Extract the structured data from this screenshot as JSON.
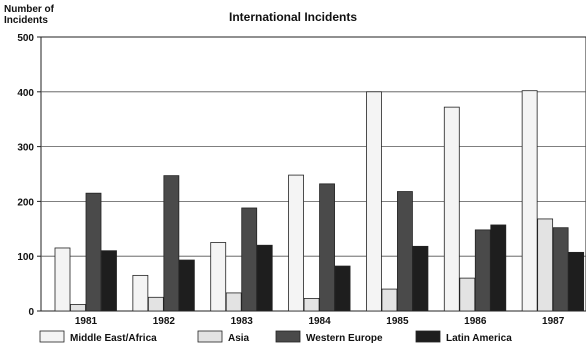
{
  "chart_data": {
    "type": "bar",
    "title": "International Incidents",
    "ylabel_lines": [
      "Number of",
      "Incidents"
    ],
    "xlabel": "",
    "categories": [
      "1981",
      "1982",
      "1983",
      "1984",
      "1985",
      "1986",
      "1987"
    ],
    "ylim": [
      0,
      500
    ],
    "yticks": [
      0,
      100,
      200,
      300,
      400,
      500
    ],
    "grid": true,
    "legend_position": "bottom",
    "series": [
      {
        "name": "Middle East/Africa",
        "color": "#f4f4f4",
        "values": [
          115,
          65,
          125,
          248,
          400,
          372,
          402
        ]
      },
      {
        "name": "Asia",
        "color": "#e3e3e3",
        "values": [
          12,
          25,
          33,
          23,
          40,
          60,
          168
        ]
      },
      {
        "name": "Western Europe",
        "color": "#4a4a4a",
        "values": [
          215,
          247,
          188,
          232,
          218,
          148,
          152
        ]
      },
      {
        "name": "Latin America",
        "color": "#1e1e1e",
        "values": [
          110,
          93,
          120,
          82,
          118,
          157,
          107
        ]
      }
    ]
  }
}
